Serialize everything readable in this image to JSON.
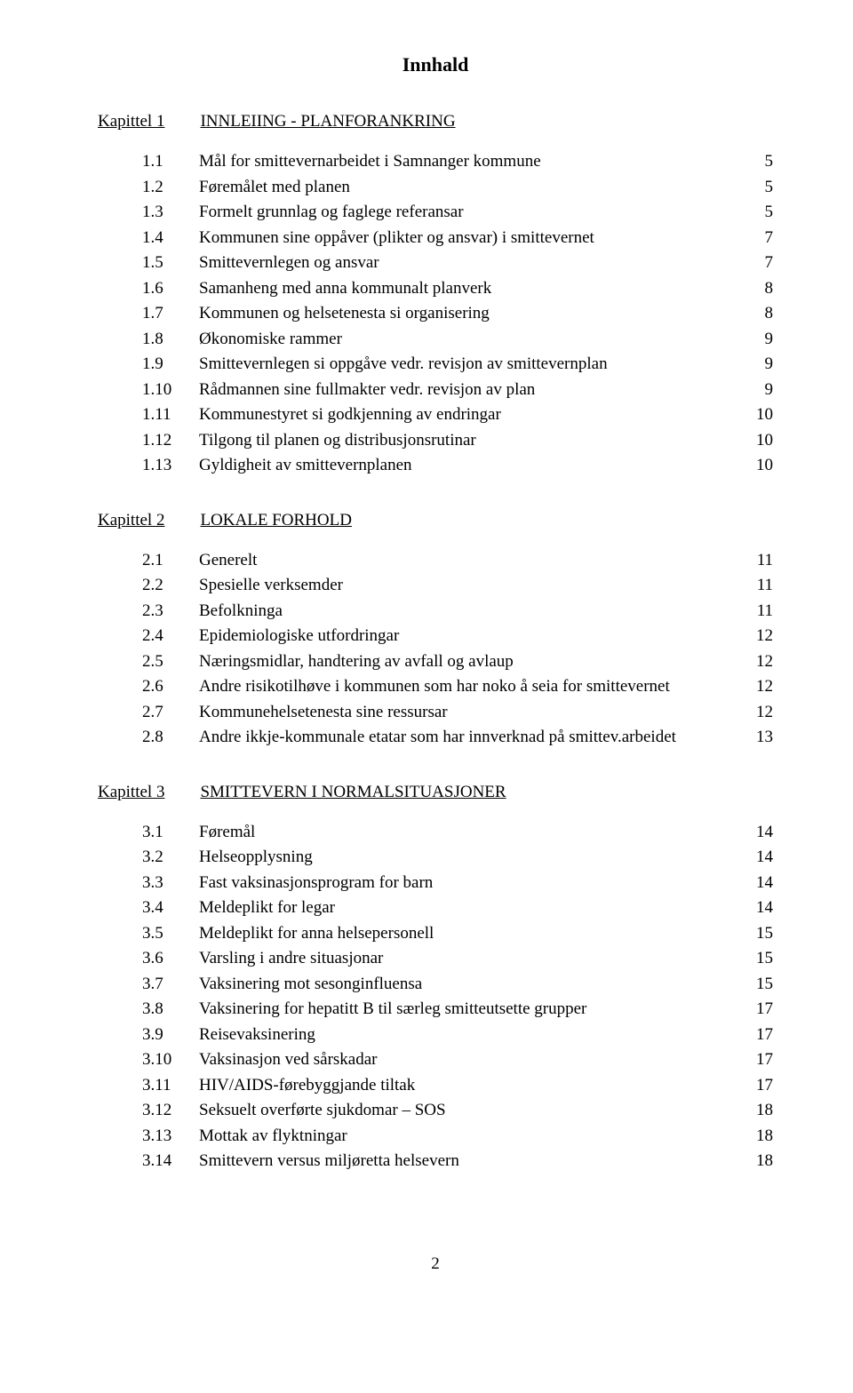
{
  "title": "Innhald",
  "pagenum": "2",
  "chapters": [
    {
      "label": "Kapittel 1",
      "name": "INNLEIING - PLANFORANKRING",
      "items": [
        {
          "num": "1.1",
          "text": "Mål for smittevernarbeidet i Samnanger kommune",
          "page": "5"
        },
        {
          "num": "1.2",
          "text": "Føremålet med planen",
          "page": "5"
        },
        {
          "num": "1.3",
          "text": "Formelt grunnlag og faglege referansar",
          "page": "5"
        },
        {
          "num": "1.4",
          "text": "Kommunen sine oppåver (plikter og ansvar) i smittevernet",
          "page": "7"
        },
        {
          "num": "1.5",
          "text": "Smittevernlegen og ansvar",
          "page": "7"
        },
        {
          "num": "1.6",
          "text": "Samanheng med anna kommunalt planverk",
          "page": "8"
        },
        {
          "num": "1.7",
          "text": "Kommunen og helsetenesta si organisering",
          "page": "8"
        },
        {
          "num": "1.8",
          "text": "Økonomiske rammer",
          "page": "9"
        },
        {
          "num": "1.9",
          "text": "Smittevernlegen si oppgåve vedr. revisjon av smittevernplan",
          "page": "9"
        },
        {
          "num": "1.10",
          "text": "Rådmannen sine fullmakter vedr. revisjon av plan",
          "page": "9"
        },
        {
          "num": "1.11",
          "text": "Kommunestyret si godkjenning av endringar",
          "page": "10"
        },
        {
          "num": "1.12",
          "text": "Tilgong til planen og distribusjonsrutinar",
          "page": "10"
        },
        {
          "num": "1.13",
          "text": "Gyldigheit av smittevernplanen",
          "page": "10"
        }
      ]
    },
    {
      "label": "Kapittel 2",
      "name": "LOKALE FORHOLD",
      "items": [
        {
          "num": "2.1",
          "text": "Generelt",
          "page": "11"
        },
        {
          "num": "2.2",
          "text": "Spesielle verksemder",
          "page": "11"
        },
        {
          "num": "2.3",
          "text": "Befolkninga",
          "page": "11"
        },
        {
          "num": "2.4",
          "text": "Epidemiologiske utfordringar",
          "page": "12"
        },
        {
          "num": "2.5",
          "text": "Næringsmidlar, handtering av avfall og avlaup",
          "page": "12"
        },
        {
          "num": "2.6",
          "text": "Andre risikotilhøve i kommunen som har noko å seia for smittevernet",
          "page": "12"
        },
        {
          "num": "2.7",
          "text": "Kommunehelsetenesta sine ressursar",
          "page": "12"
        },
        {
          "num": "2.8",
          "text": "Andre ikkje-kommunale etatar som har innverknad på smittev.arbeidet",
          "page": "13"
        }
      ]
    },
    {
      "label": "Kapittel 3",
      "name": "SMITTEVERN I NORMALSITUASJONER",
      "items": [
        {
          "num": "3.1",
          "text": "Føremål",
          "page": "14"
        },
        {
          "num": "3.2",
          "text": "Helseopplysning",
          "page": "14"
        },
        {
          "num": "3.3",
          "text": "Fast vaksinasjonsprogram for barn",
          "page": "14"
        },
        {
          "num": "3.4",
          "text": "Meldeplikt for legar",
          "page": "14"
        },
        {
          "num": "3.5",
          "text": "Meldeplikt for anna helsepersonell",
          "page": "15"
        },
        {
          "num": "3.6",
          "text": "Varsling i andre situasjonar",
          "page": "15"
        },
        {
          "num": "3.7",
          "text": "Vaksinering mot sesonginfluensa",
          "page": "15"
        },
        {
          "num": "3.8",
          "text": "Vaksinering for hepatitt B til særleg smitteutsette grupper",
          "page": "17"
        },
        {
          "num": "3.9",
          "text": "Reisevaksinering",
          "page": "17"
        },
        {
          "num": "3.10",
          "text": "Vaksinasjon ved sårskadar",
          "page": "17"
        },
        {
          "num": "3.11",
          "text": "HIV/AIDS-førebyggjande tiltak",
          "page": "17"
        },
        {
          "num": "3.12",
          "text": "Seksuelt overførte sjukdomar – SOS",
          "page": "18"
        },
        {
          "num": "3.13",
          "text": "Mottak av flyktningar",
          "page": "18"
        },
        {
          "num": "3.14",
          "text": "Smittevern versus miljøretta helsevern",
          "page": "18"
        }
      ]
    }
  ]
}
